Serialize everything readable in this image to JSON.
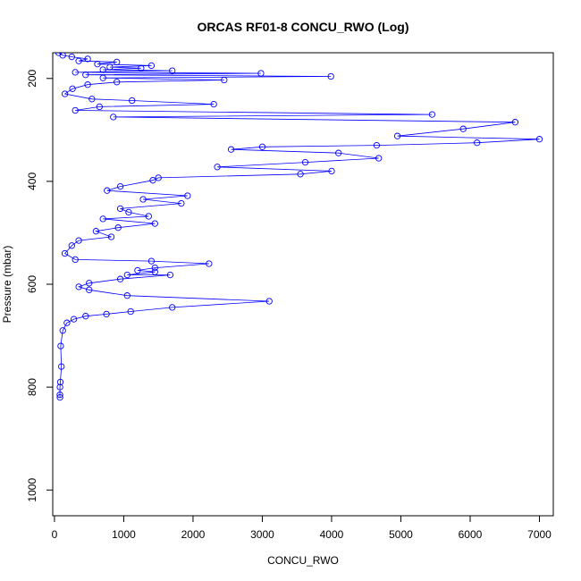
{
  "chart_data": {
    "type": "line",
    "title": "ORCAS RF01-8 CONCU_RWO (Log)",
    "xlabel": "CONCU_RWO",
    "ylabel": "Pressure (mbar)",
    "xlim": [
      -25,
      7200
    ],
    "ylim": [
      1050,
      150
    ],
    "y_reversed": true,
    "x_ticks": [
      0,
      1000,
      2000,
      3000,
      4000,
      5000,
      6000,
      7000
    ],
    "y_ticks": [
      200,
      400,
      600,
      800,
      1000
    ],
    "grid": false,
    "legend": "none",
    "color": "#0000ff",
    "marker": "open-circle",
    "series": [
      {
        "values_note_free": true,
        "points": [
          [
            60,
            150
          ],
          [
            120,
            155
          ],
          [
            250,
            158
          ],
          [
            480,
            162
          ],
          [
            350,
            166
          ],
          [
            900,
            168
          ],
          [
            620,
            172
          ],
          [
            1400,
            175
          ],
          [
            800,
            178
          ],
          [
            1250,
            180
          ],
          [
            700,
            183
          ],
          [
            1700,
            185
          ],
          [
            300,
            188
          ],
          [
            2980,
            190
          ],
          [
            450,
            193
          ],
          [
            3990,
            196
          ],
          [
            700,
            199
          ],
          [
            2450,
            203
          ],
          [
            900,
            207
          ],
          [
            480,
            212
          ],
          [
            260,
            220
          ],
          [
            150,
            230
          ],
          [
            540,
            240
          ],
          [
            1120,
            243
          ],
          [
            2300,
            250
          ],
          [
            650,
            255
          ],
          [
            300,
            262
          ],
          [
            5450,
            270
          ],
          [
            850,
            275
          ],
          [
            6650,
            285
          ],
          [
            5900,
            298
          ],
          [
            4950,
            312
          ],
          [
            7000,
            318
          ],
          [
            6100,
            325
          ],
          [
            4650,
            330
          ],
          [
            3000,
            333
          ],
          [
            2550,
            338
          ],
          [
            4100,
            345
          ],
          [
            4680,
            355
          ],
          [
            3620,
            363
          ],
          [
            2350,
            372
          ],
          [
            4000,
            380
          ],
          [
            3550,
            386
          ],
          [
            1500,
            393
          ],
          [
            1420,
            398
          ],
          [
            950,
            410
          ],
          [
            760,
            418
          ],
          [
            1920,
            428
          ],
          [
            1280,
            435
          ],
          [
            1830,
            443
          ],
          [
            950,
            453
          ],
          [
            1070,
            460
          ],
          [
            1360,
            468
          ],
          [
            700,
            473
          ],
          [
            1450,
            482
          ],
          [
            920,
            490
          ],
          [
            600,
            497
          ],
          [
            820,
            508
          ],
          [
            350,
            515
          ],
          [
            250,
            525
          ],
          [
            150,
            540
          ],
          [
            300,
            552
          ],
          [
            1400,
            555
          ],
          [
            2230,
            560
          ],
          [
            1450,
            568
          ],
          [
            1200,
            573
          ],
          [
            1450,
            576
          ],
          [
            1050,
            582
          ],
          [
            1670,
            582
          ],
          [
            950,
            590
          ],
          [
            500,
            598
          ],
          [
            350,
            605
          ],
          [
            500,
            611
          ],
          [
            1050,
            622
          ],
          [
            3100,
            633
          ],
          [
            1700,
            645
          ],
          [
            1100,
            653
          ],
          [
            750,
            658
          ],
          [
            450,
            662
          ],
          [
            280,
            668
          ],
          [
            180,
            675
          ],
          [
            120,
            690
          ],
          [
            90,
            720
          ],
          [
            100,
            760
          ],
          [
            85,
            790
          ],
          [
            80,
            800
          ],
          [
            78,
            815
          ],
          [
            80,
            820
          ]
        ]
      }
    ]
  }
}
